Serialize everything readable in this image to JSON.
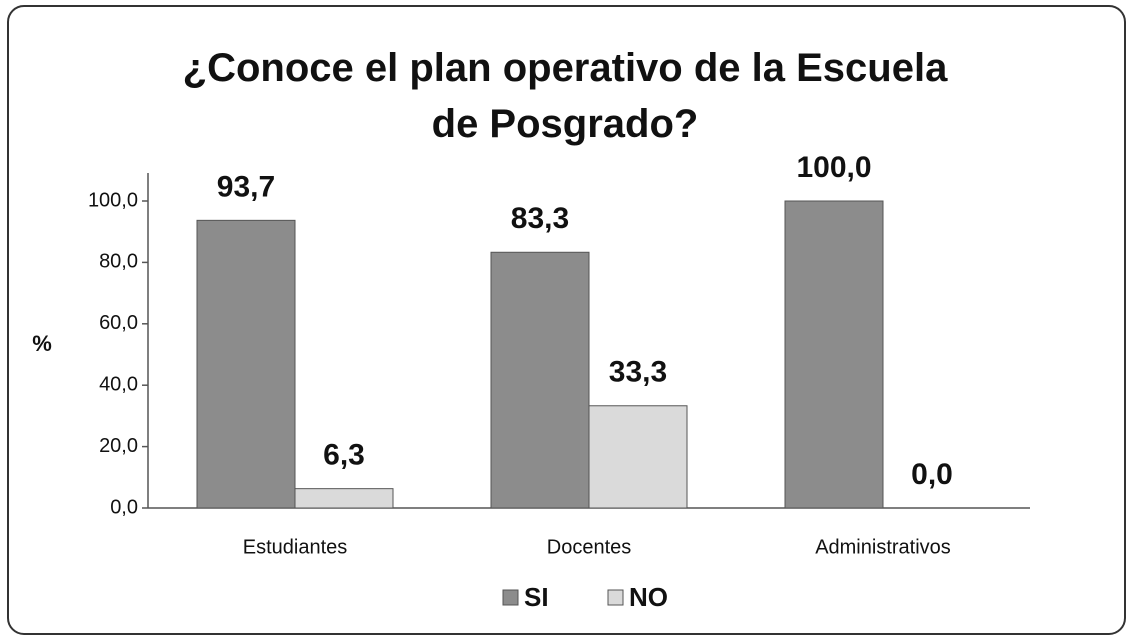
{
  "chart_data": {
    "type": "bar",
    "title": "¿Conoce el plan operativo de la Escuela de Posgrado?",
    "y_label": "%",
    "categories": [
      "Estudiantes",
      "Docentes",
      "Administrativos"
    ],
    "series": [
      {
        "name": "SI",
        "color": "#8c8c8c",
        "values": [
          93.7,
          83.3,
          100.0
        ],
        "value_labels": [
          "93,7",
          "83,3",
          "100,0"
        ]
      },
      {
        "name": "NO",
        "color": "#dadada",
        "values": [
          6.3,
          33.3,
          0.0
        ],
        "value_labels": [
          "6,3",
          "33,3",
          "0,0"
        ]
      }
    ],
    "ylim": [
      0,
      100
    ],
    "yticks": [
      {
        "value": 0,
        "label": "0,0"
      },
      {
        "value": 20,
        "label": "20,0"
      },
      {
        "value": 40,
        "label": "40,0"
      },
      {
        "value": 60,
        "label": "60,0"
      },
      {
        "value": 80,
        "label": "80,0"
      },
      {
        "value": 100,
        "label": "100,0"
      }
    ],
    "legend": "bottom"
  }
}
